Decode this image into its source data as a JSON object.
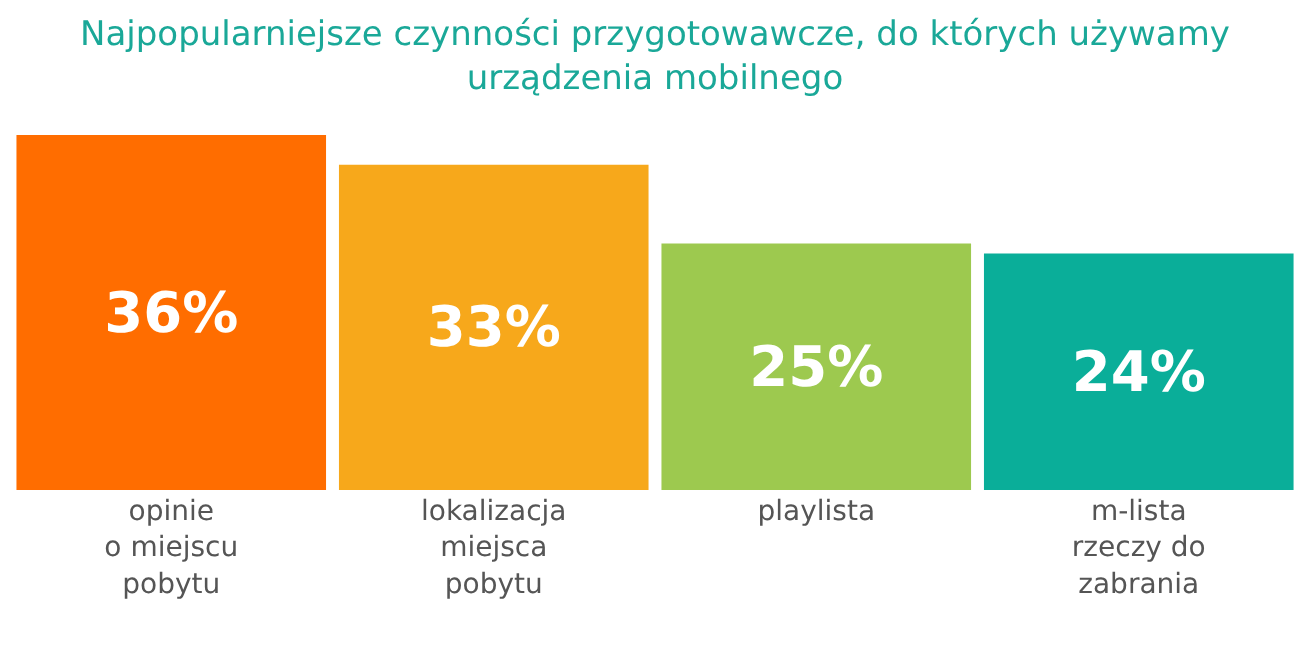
{
  "chart_data": {
    "type": "bar",
    "title": "Najpopularniejsze czynności przygotowawcze, do których używamy\nurządzenia mobilnego",
    "categories": [
      "opinie\no miejscu\npobytu",
      "lokalizacja\nmiejsca\npobytu",
      "playlista",
      "m-lista\nrzeczy do\nzabrania"
    ],
    "values": [
      36,
      33,
      25,
      24
    ],
    "colors": [
      "#ff6d00",
      "#f7a81b",
      "#9dc94f",
      "#0aae99"
    ],
    "value_labels": [
      "36%",
      "33%",
      "25%",
      "24%"
    ],
    "legend": false
  }
}
